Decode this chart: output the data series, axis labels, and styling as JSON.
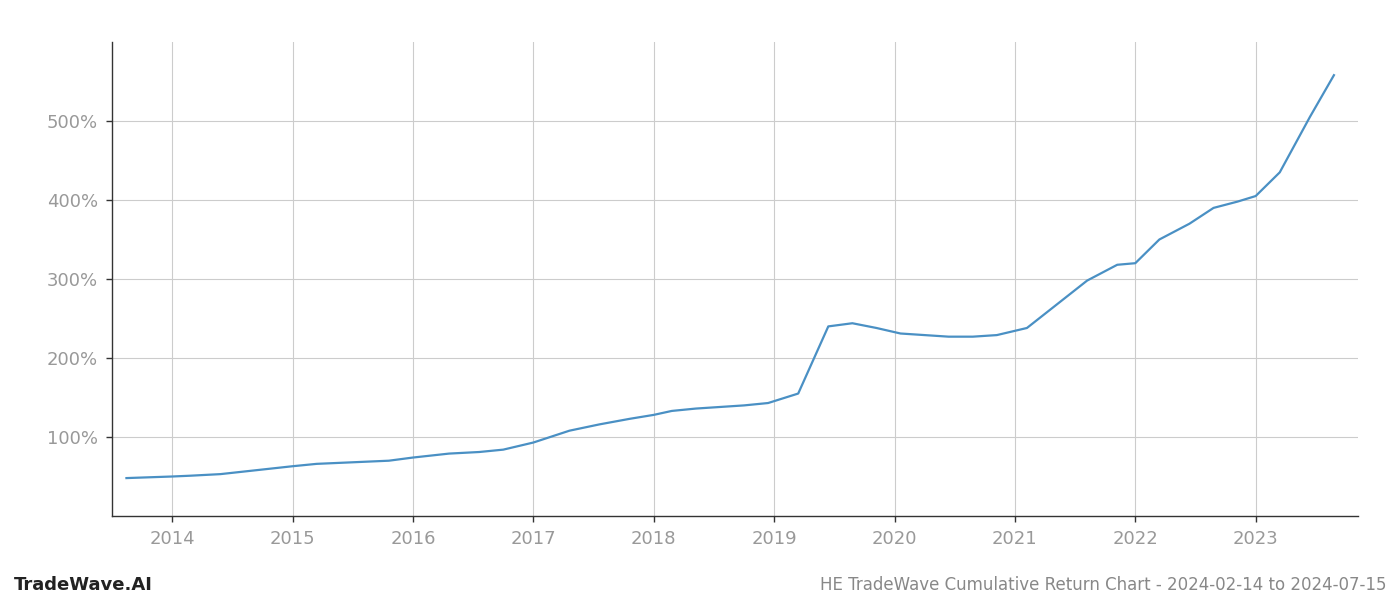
{
  "title": "HE TradeWave Cumulative Return Chart - 2024-02-14 to 2024-07-15",
  "watermark": "TradeWave.AI",
  "line_color": "#4a90c4",
  "background_color": "#ffffff",
  "grid_color": "#cccccc",
  "x_values": [
    2013.62,
    2014.0,
    2014.15,
    2014.4,
    2014.7,
    2015.0,
    2015.2,
    2015.5,
    2015.8,
    2016.0,
    2016.3,
    2016.55,
    2016.75,
    2017.0,
    2017.3,
    2017.55,
    2017.8,
    2018.0,
    2018.15,
    2018.35,
    2018.55,
    2018.75,
    2018.95,
    2019.2,
    2019.45,
    2019.65,
    2019.85,
    2020.05,
    2020.25,
    2020.45,
    2020.65,
    2020.85,
    2021.1,
    2021.35,
    2021.6,
    2021.85,
    2022.0,
    2022.2,
    2022.45,
    2022.65,
    2022.85,
    2023.0,
    2023.2,
    2023.45,
    2023.65
  ],
  "y_values": [
    48,
    50,
    51,
    53,
    58,
    63,
    66,
    68,
    70,
    74,
    79,
    81,
    84,
    93,
    108,
    116,
    123,
    128,
    133,
    136,
    138,
    140,
    143,
    155,
    240,
    244,
    238,
    231,
    229,
    227,
    227,
    229,
    238,
    268,
    298,
    318,
    320,
    350,
    370,
    390,
    398,
    405,
    435,
    505,
    558
  ],
  "yticks": [
    100,
    200,
    300,
    400,
    500
  ],
  "xticks": [
    2014,
    2015,
    2016,
    2017,
    2018,
    2019,
    2020,
    2021,
    2022,
    2023
  ],
  "xlim": [
    2013.5,
    2023.85
  ],
  "ylim": [
    0,
    600
  ],
  "line_width": 1.6,
  "tick_fontsize": 13,
  "watermark_fontsize": 13,
  "title_fontsize": 12,
  "spine_color": "#333333",
  "tick_color": "#999999",
  "label_color": "#999999"
}
